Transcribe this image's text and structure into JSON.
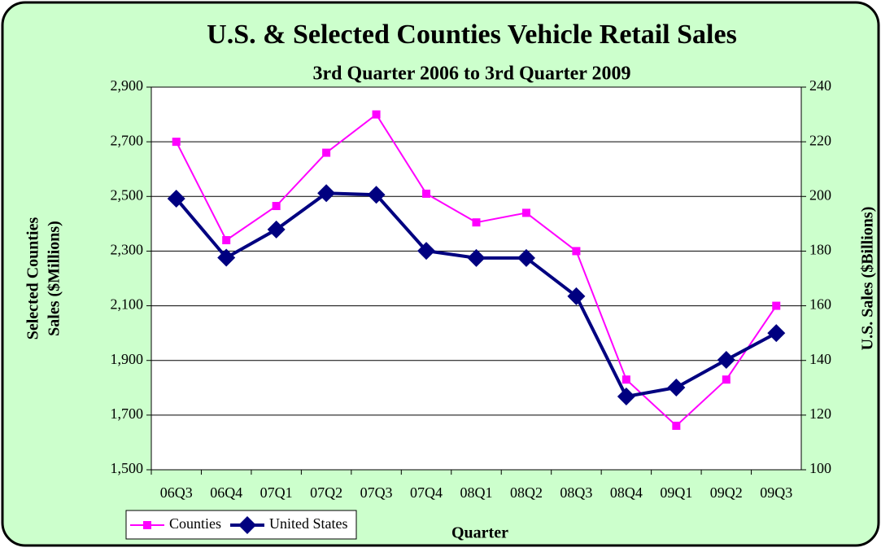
{
  "chart_data": {
    "type": "line",
    "title": "U.S. & Selected Counties Vehicle Retail Sales",
    "subtitle": "3rd Quarter 2006 to 3rd Quarter 2009",
    "x_label": "Quarter",
    "y_label": [
      "Selected Counties",
      "Sales ($Millions)"
    ],
    "y2_label": "U.S. Sales ($Billions)",
    "categories": [
      "06Q3",
      "06Q4",
      "07Q1",
      "07Q2",
      "07Q3",
      "07Q4",
      "08Q1",
      "08Q2",
      "08Q3",
      "08Q4",
      "09Q1",
      "09Q2",
      "09Q3"
    ],
    "series": [
      {
        "name": "Counties",
        "color": "#ff00ff",
        "marker": "square",
        "values": [
          2700,
          2340,
          2465,
          2660,
          2800,
          2510,
          2405,
          2440,
          2300,
          1830,
          1661,
          1830,
          2100
        ]
      },
      {
        "name": "United States",
        "color": "#000080",
        "marker": "diamond",
        "axis": "y2",
        "values": [
          199.2,
          177.6,
          187.9,
          201.2,
          200.6,
          180.1,
          177.5,
          177.5,
          163.5,
          126.8,
          130.1,
          140.2,
          150
        ]
      }
    ],
    "ylim": [
      1500,
      2900
    ],
    "yticks": [
      {
        "value": 1500,
        "label": "1,500"
      },
      {
        "value": 1700,
        "label": "1,700"
      },
      {
        "value": 1900,
        "label": "1,900"
      },
      {
        "value": 2100,
        "label": "2,100"
      },
      {
        "value": 2300,
        "label": "2,300"
      },
      {
        "value": 2500,
        "label": "2,500"
      },
      {
        "value": 2700,
        "label": "2,700"
      },
      {
        "value": 2900,
        "label": "2,900"
      }
    ],
    "y2lim": [
      100,
      240
    ],
    "y2ticks": [
      100,
      120,
      140,
      160,
      180,
      200,
      220,
      240
    ],
    "grid": true,
    "legend": "bottom-left"
  }
}
